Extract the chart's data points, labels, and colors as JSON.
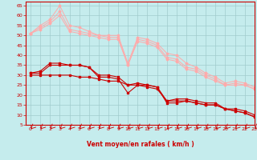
{
  "xlabel": "Vent moyen/en rafales ( km/h )",
  "xlim": [
    -0.5,
    23
  ],
  "ylim": [
    5,
    67
  ],
  "yticks": [
    5,
    10,
    15,
    20,
    25,
    30,
    35,
    40,
    45,
    50,
    55,
    60,
    65
  ],
  "xticks": [
    0,
    1,
    2,
    3,
    4,
    5,
    6,
    7,
    8,
    9,
    10,
    11,
    12,
    13,
    14,
    15,
    16,
    17,
    18,
    19,
    20,
    21,
    22,
    23
  ],
  "bg_color": "#c5eced",
  "grid_color": "#a0cccc",
  "x": [
    0,
    1,
    2,
    3,
    4,
    5,
    6,
    7,
    8,
    9,
    10,
    11,
    12,
    13,
    14,
    15,
    16,
    17,
    18,
    19,
    20,
    21,
    22,
    23
  ],
  "lines_light": [
    [
      51,
      55,
      58,
      65,
      55,
      54,
      52,
      50,
      50,
      50,
      36,
      49,
      48,
      46,
      41,
      40,
      36,
      34,
      31,
      29,
      26,
      27,
      26,
      24
    ],
    [
      51,
      54,
      57,
      62,
      53,
      52,
      51,
      50,
      49,
      49,
      35,
      48,
      47,
      45,
      39,
      38,
      34,
      33,
      30,
      28,
      25,
      26,
      25,
      23
    ],
    [
      51,
      53,
      56,
      60,
      52,
      51,
      50,
      49,
      48,
      48,
      35,
      47,
      46,
      44,
      38,
      37,
      33,
      32,
      29,
      27,
      25,
      25,
      25,
      23
    ]
  ],
  "lines_dark": [
    [
      31,
      31,
      35,
      35,
      35,
      35,
      34,
      29,
      29,
      28,
      21,
      25,
      25,
      24,
      16,
      16,
      17,
      16,
      15,
      15,
      13,
      12,
      11,
      9
    ],
    [
      31,
      32,
      36,
      36,
      35,
      35,
      34,
      30,
      30,
      29,
      25,
      26,
      25,
      24,
      17,
      18,
      18,
      17,
      16,
      16,
      13,
      13,
      12,
      10
    ],
    [
      30,
      30,
      30,
      30,
      30,
      29,
      29,
      28,
      27,
      27,
      25,
      25,
      24,
      23,
      17,
      17,
      17,
      16,
      15,
      15,
      13,
      12,
      11,
      9
    ]
  ],
  "light_color": "#ffaaaa",
  "dark_color": "#cc0000",
  "marker_light": "D",
  "marker_dark": "s",
  "markersize_light": 1.5,
  "markersize_dark": 1.5,
  "linewidth_light": 0.7,
  "linewidth_dark": 0.8,
  "arrow_color": "#cc0000",
  "tick_label_color": "#cc0000",
  "xlabel_color": "#cc0000",
  "spine_color": "#cc0000"
}
